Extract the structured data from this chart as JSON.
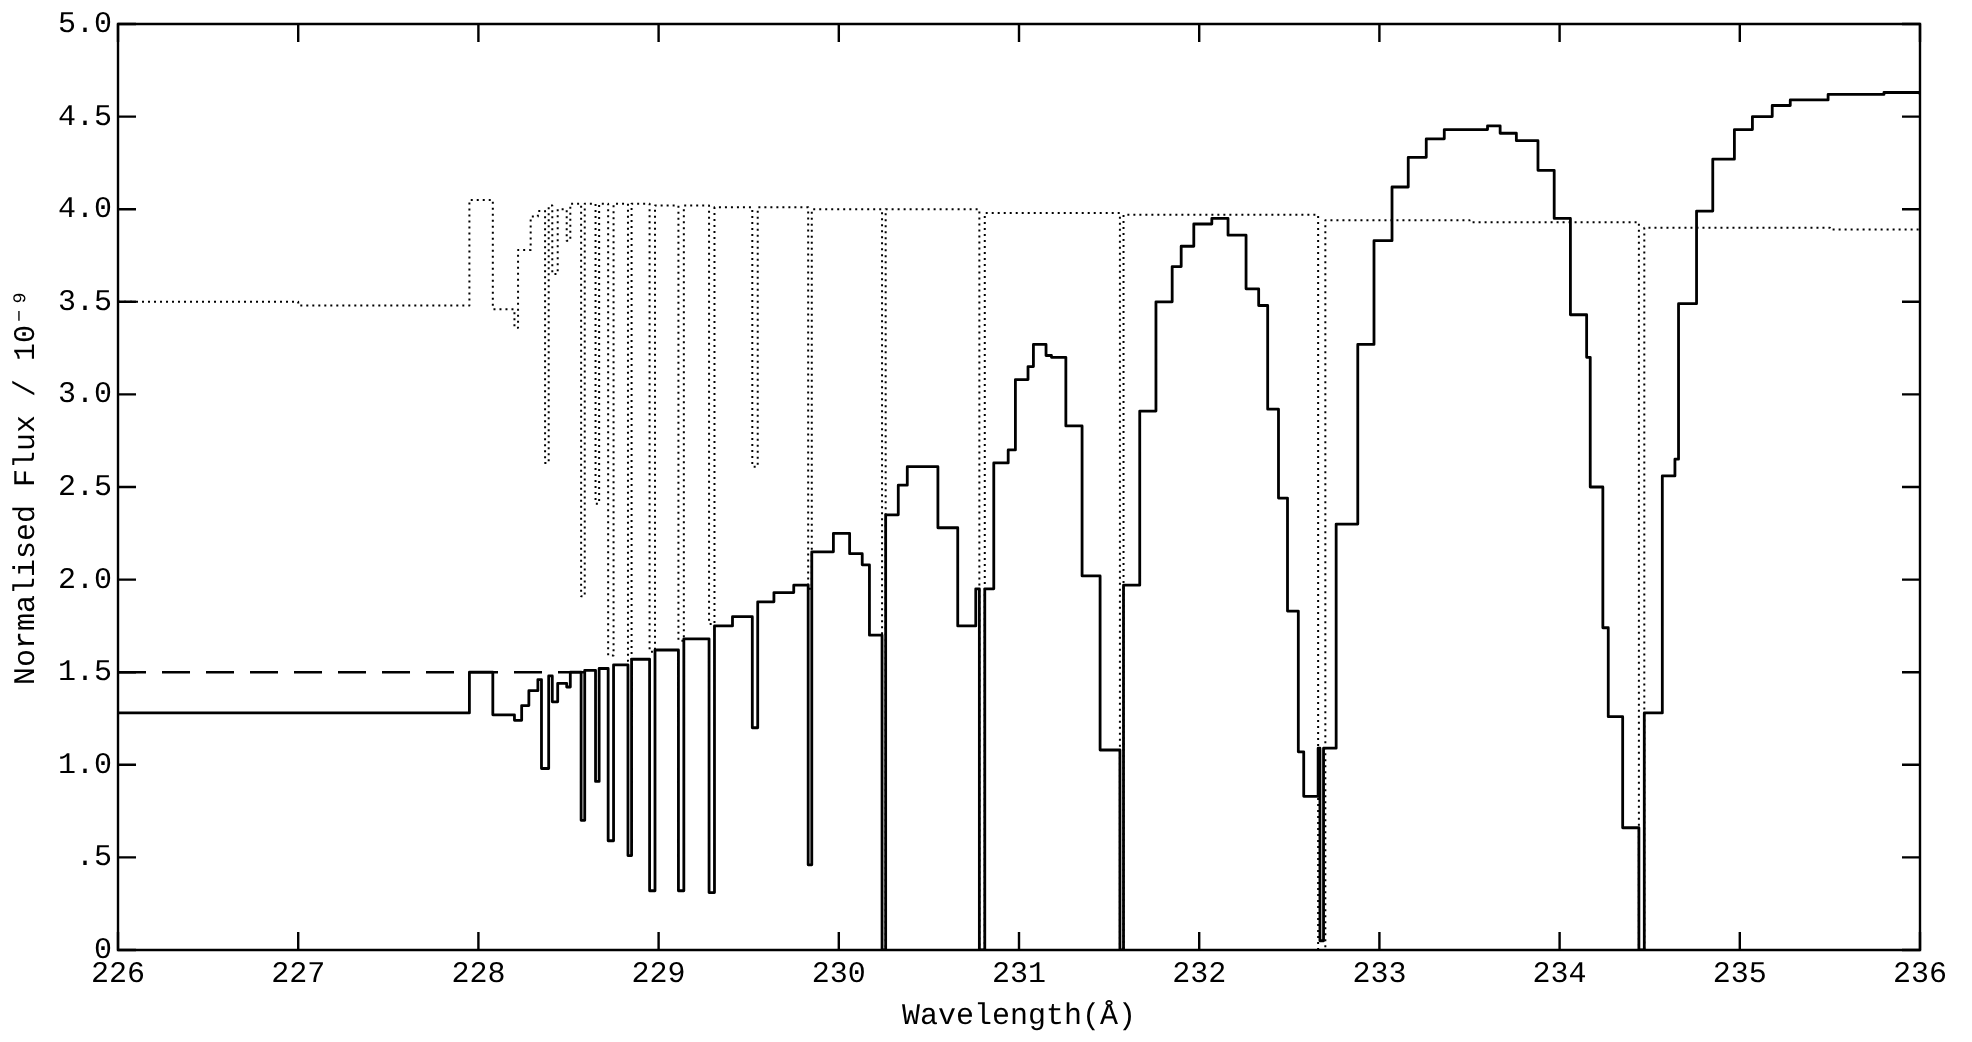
{
  "chart_data": {
    "type": "step",
    "xlabel": "Wavelength(Å)",
    "ylabel": "Normalised Flux / 10⁻⁹",
    "xlim": [
      226,
      236
    ],
    "xticks": [
      226,
      227,
      228,
      229,
      230,
      231,
      232,
      233,
      234,
      235,
      236
    ],
    "ylim": [
      0,
      5
    ],
    "yticks": [
      0,
      {
        "value": 0.5,
        "label": ".5"
      },
      {
        "value": 1,
        "label": "1.0"
      },
      1.5,
      {
        "value": 2,
        "label": "2.0"
      },
      2.5,
      {
        "value": 3,
        "label": "3.0"
      },
      3.5,
      {
        "value": 4,
        "label": "4.0"
      },
      4.5,
      {
        "value": 5,
        "label": "5.0"
      }
    ],
    "marker": "none",
    "legend": false,
    "series": [
      {
        "type": "step",
        "color": "#000000",
        "line_style": "solid",
        "x": [
          226,
          227.95,
          228.08,
          228.2,
          228.24,
          228.28,
          228.33,
          228.35,
          228.39,
          228.41,
          228.44,
          228.49,
          228.51,
          228.57,
          228.59,
          228.65,
          228.67,
          228.72,
          228.75,
          228.83,
          228.85,
          228.95,
          228.98,
          229.11,
          229.14,
          229.28,
          229.31,
          229.41,
          229.52,
          229.55,
          229.64,
          229.75,
          229.83,
          229.85,
          229.97,
          230.06,
          230.13,
          230.17,
          230.24,
          230.26,
          230.33,
          230.38,
          230.55,
          230.66,
          230.76,
          230.78,
          230.81,
          230.86,
          230.94,
          230.98,
          231.05,
          231.08,
          231.15,
          231.18,
          231.26,
          231.35,
          231.45,
          231.56,
          231.58,
          231.67,
          231.76,
          231.85,
          231.9,
          231.97,
          232.07,
          232.16,
          232.26,
          232.33,
          232.38,
          232.44,
          232.49,
          232.55,
          232.58,
          232.66,
          232.67,
          232.69,
          232.76,
          232.88,
          232.97,
          233.07,
          233.16,
          233.26,
          233.36,
          233.6,
          233.67,
          233.76,
          233.88,
          233.97,
          234.06,
          234.15,
          234.17,
          234.24,
          234.27,
          234.35,
          234.44,
          234.47,
          234.57,
          234.64,
          234.66,
          234.76,
          234.85,
          234.97,
          235.07,
          235.18,
          235.28,
          235.49,
          235.8,
          236
        ],
        "values": [
          1.28,
          1.5,
          1.27,
          1.24,
          1.32,
          1.4,
          1.46,
          0.98,
          1.48,
          1.34,
          1.44,
          1.42,
          1.5,
          0.7,
          1.51,
          0.91,
          1.52,
          0.59,
          1.54,
          0.51,
          1.57,
          0.32,
          1.62,
          0.32,
          1.68,
          0.31,
          1.75,
          1.8,
          1.2,
          1.88,
          1.93,
          1.97,
          0.46,
          2.15,
          2.25,
          2.14,
          2.08,
          1.7,
          0,
          2.35,
          2.51,
          2.61,
          2.28,
          1.75,
          1.95,
          0,
          1.95,
          2.63,
          2.7,
          3.08,
          3.15,
          3.27,
          3.21,
          3.2,
          2.83,
          2.02,
          1.08,
          0,
          1.97,
          2.91,
          3.5,
          3.69,
          3.8,
          3.92,
          3.95,
          3.86,
          3.57,
          3.48,
          2.92,
          2.44,
          1.83,
          1.07,
          0.83,
          1.09,
          0.05,
          1.09,
          2.3,
          3.27,
          3.83,
          4.12,
          4.28,
          4.38,
          4.43,
          4.45,
          4.41,
          4.37,
          4.21,
          3.95,
          3.43,
          3.2,
          2.5,
          1.74,
          1.26,
          0.66,
          0,
          1.28,
          2.56,
          2.65,
          3.49,
          3.99,
          4.27,
          4.43,
          4.5,
          4.56,
          4.59,
          4.62,
          4.63,
          4.62
        ]
      },
      {
        "type": "step",
        "color": "#000000",
        "line_style": "dotted",
        "x": [
          226,
          227,
          227.95,
          228.08,
          228.2,
          228.22,
          228.29,
          228.33,
          228.37,
          228.39,
          228.41,
          228.44,
          228.49,
          228.51,
          228.57,
          228.59,
          228.65,
          228.67,
          228.72,
          228.75,
          228.83,
          228.85,
          228.95,
          228.98,
          229.11,
          229.14,
          229.28,
          229.31,
          229.52,
          229.55,
          229.83,
          229.85,
          230.24,
          230.26,
          230.78,
          230.81,
          231.56,
          231.58,
          232.66,
          232.7,
          233.5,
          234.44,
          234.47,
          235.5,
          236
        ],
        "values": [
          3.5,
          3.48,
          4.05,
          3.46,
          3.36,
          3.78,
          3.96,
          3.99,
          2.63,
          4.02,
          3.65,
          4,
          3.83,
          4.03,
          1.91,
          4.03,
          2.41,
          4.03,
          1.59,
          4.03,
          1.56,
          4.03,
          1.61,
          4.02,
          1.67,
          4.02,
          1.76,
          4.01,
          2.61,
          4.01,
          1.95,
          4,
          0,
          4,
          0,
          3.98,
          0,
          3.97,
          0,
          3.94,
          3.93,
          0,
          3.9,
          3.89,
          3.88
        ]
      },
      {
        "type": "line",
        "color": "#000000",
        "line_style": "dashed",
        "x": [
          226,
          228.6
        ],
        "values": [
          1.5,
          1.5
        ]
      }
    ]
  }
}
